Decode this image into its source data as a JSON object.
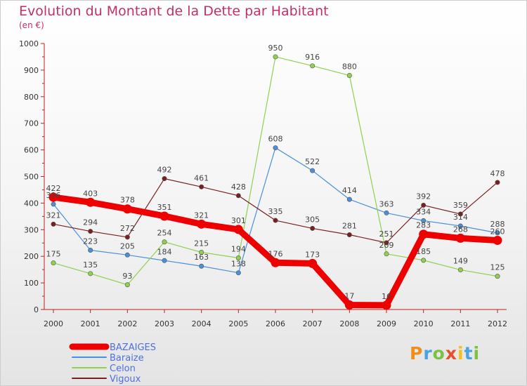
{
  "chart_data": {
    "type": "line",
    "title": "Evolution du Montant de la Dette par Habitant",
    "subtitle": "(en €)",
    "x": [
      "2000",
      "2001",
      "2002",
      "2003",
      "2004",
      "2005",
      "2006",
      "2007",
      "2008",
      "2009",
      "2010",
      "2011",
      "2012"
    ],
    "ylim": [
      0,
      1000
    ],
    "yticks": [
      "0",
      "100",
      "200",
      "300",
      "400",
      "500",
      "600",
      "700",
      "800",
      "900",
      "1000"
    ],
    "grid": false,
    "legend_position": "bottom-left",
    "series": [
      {
        "name": "BAZAIGES",
        "values": [
          422,
          403,
          378,
          351,
          321,
          301,
          176,
          173,
          17,
          16,
          283,
          268,
          260
        ],
        "labels": [
          "422",
          "403",
          "378",
          "351",
          "321",
          "301",
          "176",
          "173",
          "17",
          "16",
          "283",
          "268",
          "260"
        ],
        "color": "#ee0000"
      },
      {
        "name": "Baraize",
        "values": [
          396,
          223,
          205,
          184,
          163,
          138,
          608,
          522,
          414,
          363,
          334,
          314,
          288
        ],
        "labels": [
          "396",
          "223",
          "205",
          "184",
          "163",
          "138",
          "608",
          "522",
          "414",
          "363",
          "334",
          "314",
          "288"
        ],
        "color": "#4a90d9"
      },
      {
        "name": "Celon",
        "values": [
          175,
          135,
          93,
          254,
          215,
          194,
          950,
          916,
          880,
          209,
          185,
          149,
          125
        ],
        "labels": [
          "175",
          "135",
          "93",
          "254",
          "215",
          "194",
          "950",
          "916",
          "880",
          "209",
          "185",
          "149",
          "125"
        ],
        "color": "#8fd14f"
      },
      {
        "name": "Vigoux",
        "values": [
          321,
          294,
          272,
          492,
          461,
          428,
          335,
          305,
          281,
          251,
          392,
          359,
          478
        ],
        "labels": [
          "321",
          "294",
          "272",
          "492",
          "461",
          "428",
          "335",
          "305",
          "281",
          "251",
          "392",
          "359",
          "478"
        ],
        "color": "#7a1f1f"
      }
    ]
  },
  "branding": {
    "logo": "Proxiti",
    "letters": [
      "P",
      "r",
      "o",
      "x",
      "i",
      "t",
      "i"
    ]
  }
}
